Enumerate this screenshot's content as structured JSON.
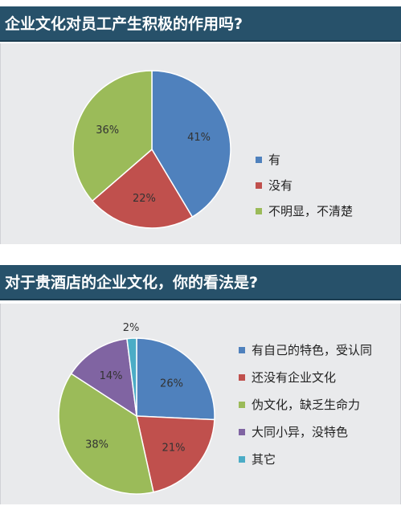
{
  "chart_data": [
    {
      "type": "pie",
      "title": "企业文化对员工产生积极的作用吗?",
      "categories": [
        "有",
        "没有",
        "不明显，不清楚"
      ],
      "values": [
        41,
        22,
        36
      ],
      "labels": [
        "41%",
        "22%",
        "36%"
      ],
      "colors": [
        "#4f81bd",
        "#c0504d",
        "#9bbb59"
      ],
      "legend_placement": "right"
    },
    {
      "type": "pie",
      "title": "对于贵酒店的企业文化，你的看法是?",
      "categories": [
        "有自己的特色，受认同",
        "还没有企业文化",
        "伪文化，缺乏生命力",
        "大同小异，没特色",
        "其它"
      ],
      "values": [
        26,
        21,
        38,
        14,
        2
      ],
      "labels": [
        "26%",
        "21%",
        "38%",
        "14%",
        "2%"
      ],
      "colors": [
        "#4f81bd",
        "#c0504d",
        "#9bbb59",
        "#8064a2",
        "#4bacc6"
      ],
      "legend_placement": "right"
    }
  ]
}
